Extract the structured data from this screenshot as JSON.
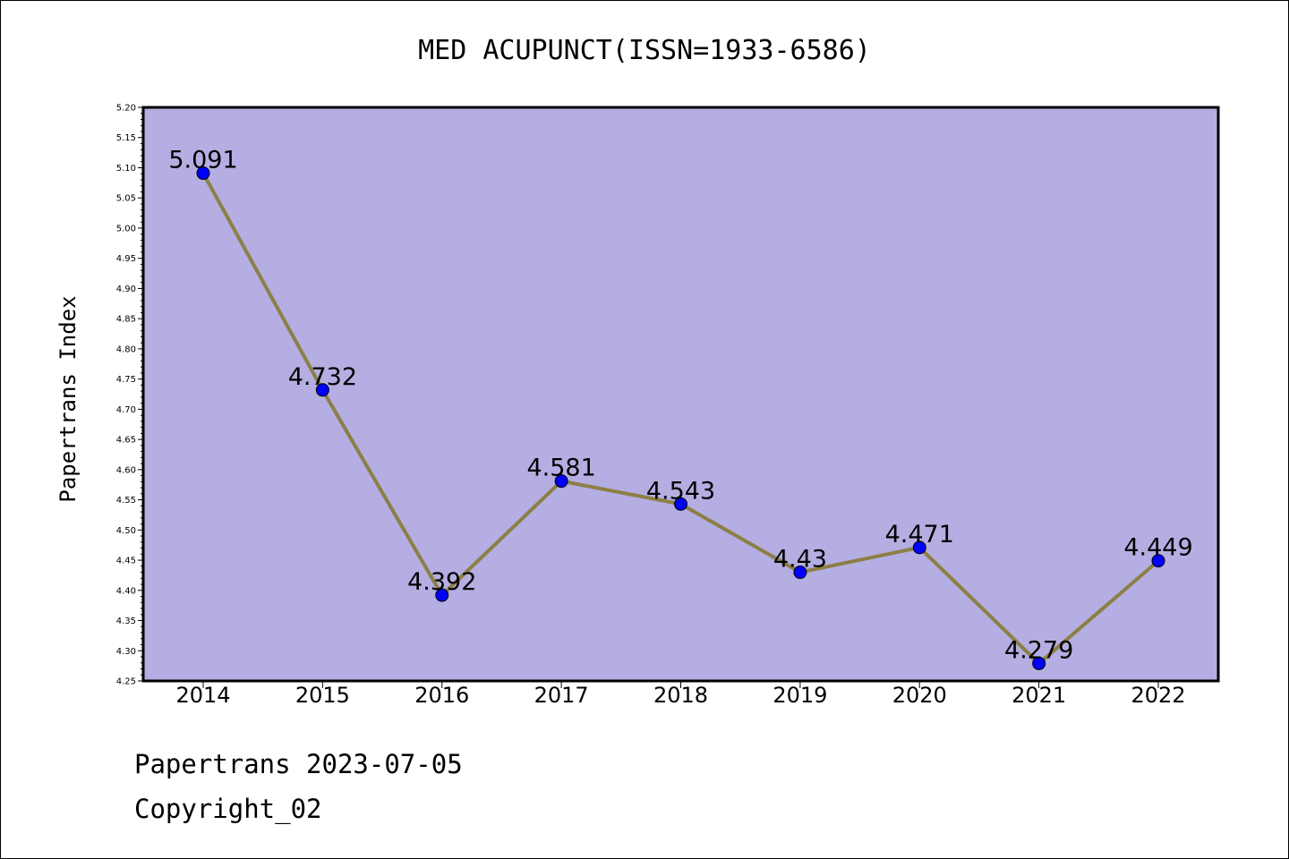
{
  "chart_data": {
    "type": "line",
    "title": "MED ACUPUNCT(ISSN=1933-6586)",
    "xlabel": "",
    "ylabel": "Papertrans Index",
    "categories": [
      "2014",
      "2015",
      "2016",
      "2017",
      "2018",
      "2019",
      "2020",
      "2021",
      "2022"
    ],
    "series": [
      {
        "values": [
          5.091,
          4.732,
          4.392,
          4.581,
          4.543,
          4.43,
          4.471,
          4.279,
          4.449
        ],
        "data_labels": [
          "5.091",
          "4.732",
          "4.392",
          "4.581",
          "4.543",
          "4.43",
          "4.471",
          "4.279",
          "4.449"
        ]
      }
    ],
    "ylim": [
      4.25,
      5.2
    ],
    "yticks": [
      "4.25",
      "4.30",
      "4.35",
      "4.40",
      "4.45",
      "4.50",
      "4.55",
      "4.60",
      "4.65",
      "4.70",
      "4.75",
      "4.80",
      "4.85",
      "4.90",
      "4.95",
      "5.00",
      "5.05",
      "5.10",
      "5.15",
      "5.20"
    ],
    "grid": false,
    "legend": "none",
    "colors": {
      "plot_background": "#b4aee2",
      "line": "#8c7f45",
      "marker": "#0000ff"
    }
  },
  "footer": {
    "line1": "Papertrans 2023-07-05",
    "line2": "Copyright_02"
  }
}
